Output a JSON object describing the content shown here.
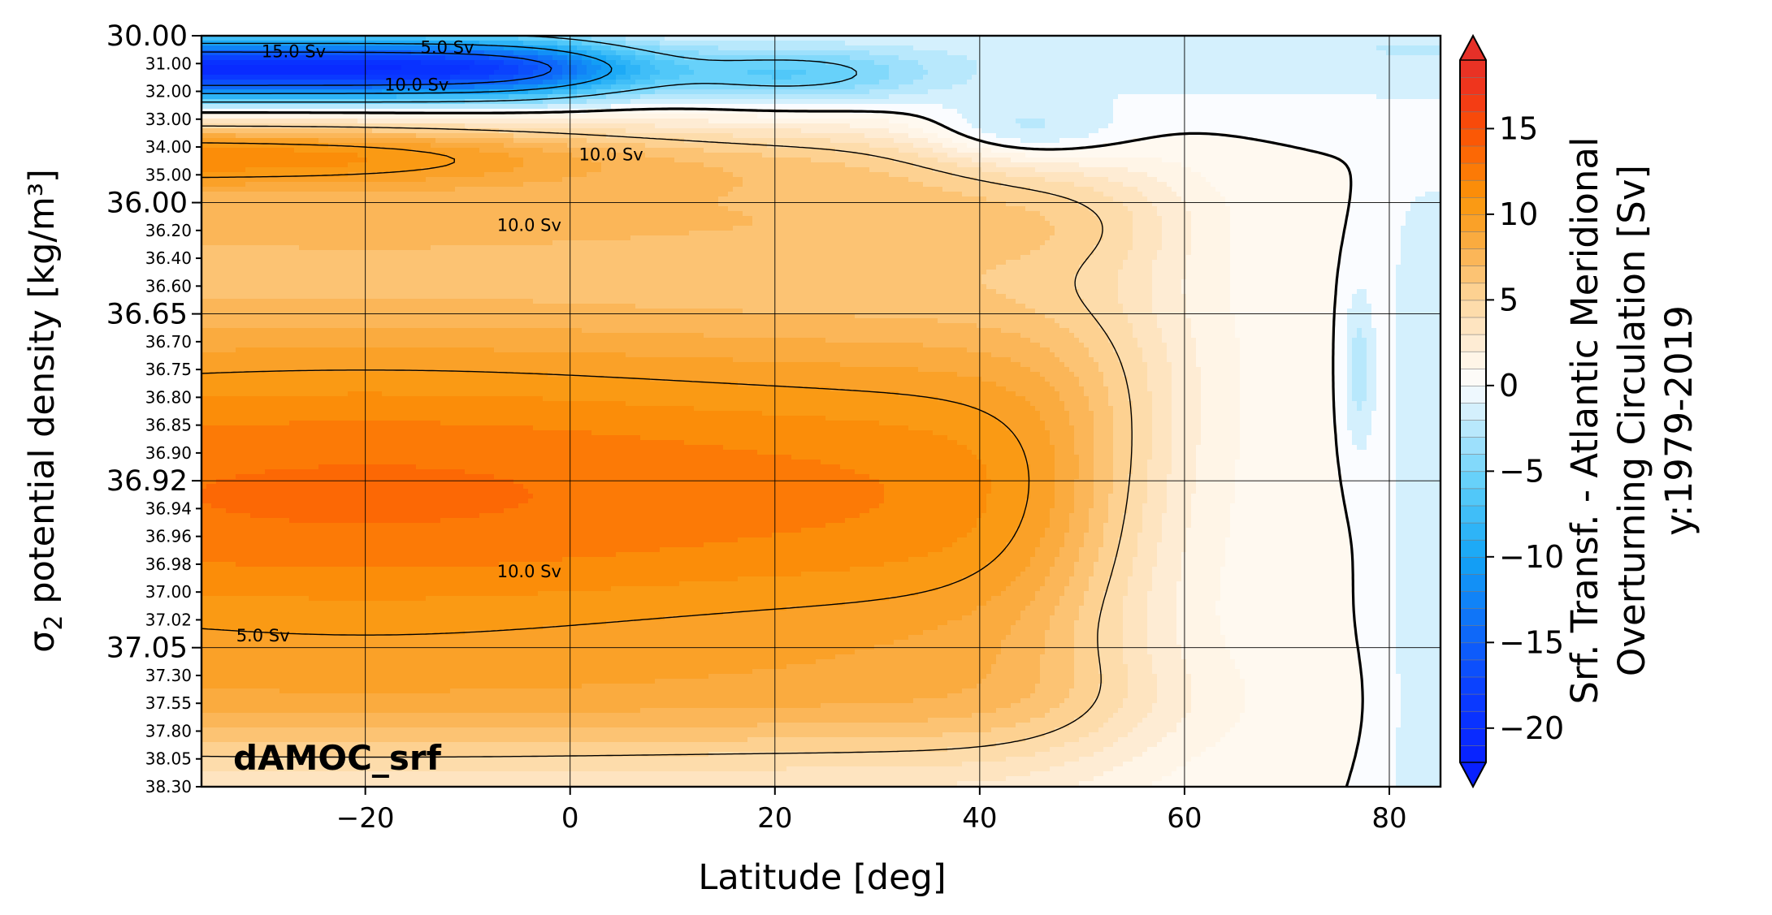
{
  "chart_data": {
    "type": "heatmap",
    "plot_type": "filled contour (latitude vs sigma2 density)",
    "panel_label": "dAMOC_srf",
    "xlabel": "Latitude [deg]",
    "ylabel_prefix": "σ",
    "ylabel_subscript": "2",
    "ylabel_suffix": " potential density [kg/m³]",
    "xlim": [
      -36,
      85
    ],
    "x_ticks": [
      -20,
      0,
      20,
      40,
      60,
      80
    ],
    "x_tick_labels": [
      "−20",
      "0",
      "20",
      "40",
      "60",
      "80"
    ],
    "y_ticks_major": [
      "30.00",
      "36.00",
      "36.65",
      "36.92",
      "37.05"
    ],
    "y_ticks_minor": [
      "31.00",
      "32.00",
      "33.00",
      "34.00",
      "35.00",
      "36.20",
      "36.40",
      "36.60",
      "36.70",
      "36.75",
      "36.80",
      "36.85",
      "36.90",
      "36.94",
      "36.96",
      "36.98",
      "37.00",
      "37.02",
      "37.30",
      "37.55",
      "37.80",
      "38.05",
      "38.30"
    ],
    "y_axis_note": "non-linear density axis, 28 rows from 30.00 (top) to 38.30 (bottom)",
    "grid": true,
    "contour_labels": [
      "15.0 Sv",
      "10.0 Sv",
      "5.0 Sv",
      "10.0 Sv",
      "10.0 Sv",
      "10.0 Sv",
      "5.0 Sv"
    ],
    "colorbar": {
      "label_lines": [
        "Srf. Transf. - Atlantic Meridional",
        "Overturning Circulation [Sv]",
        "y:1979-2019"
      ],
      "range": [
        -22,
        19
      ],
      "ticks": [
        15,
        10,
        5,
        0,
        -5,
        -10,
        -15,
        -20
      ],
      "tick_labels": [
        "15",
        "10",
        "5",
        "0",
        "−5",
        "−10",
        "−15",
        "−20"
      ],
      "cmap": "blue-white-orange-red diverging",
      "extend": "both"
    },
    "features": {
      "upper_negative_cell": "light-density overturning cell down to about -20 Sv near 31-32 kg/m3 south of 20N",
      "main_positive_cell": "up to about 17 Sv near 34 kg/m3 at 35S and about 13 Sv at 36.92-36.96 from 35S to 55N",
      "zero_line": "thick black 0 Sv contour separating cells and bounding Arctic region near 75-82N"
    }
  }
}
